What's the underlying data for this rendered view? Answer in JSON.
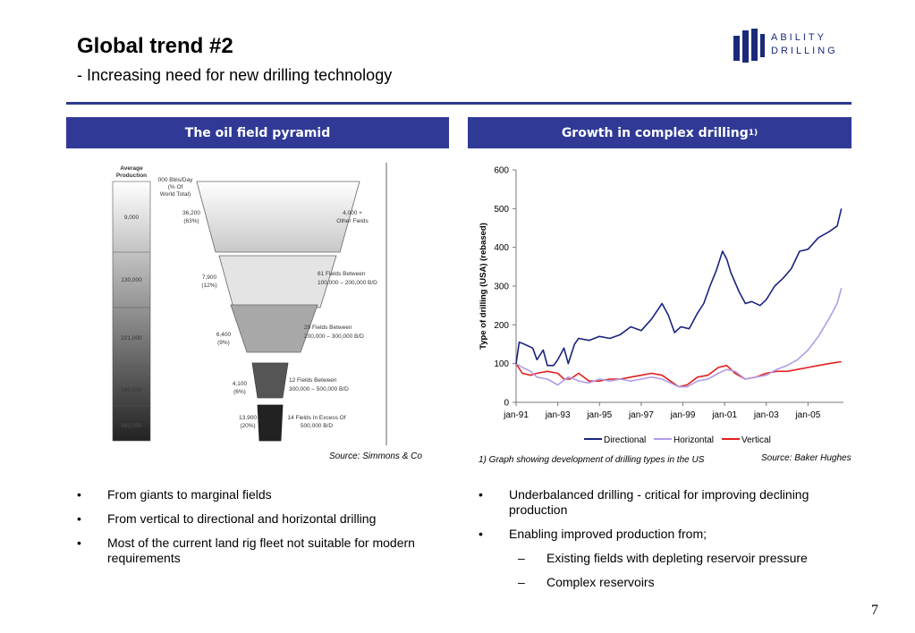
{
  "header": {
    "title": "Global trend #2",
    "subtitle": "- Increasing need for new drilling technology"
  },
  "logo": {
    "line1": "ABILITY",
    "line2": "DRILLING",
    "color": "#1a2a7a"
  },
  "left_panel": {
    "band_title": "The oil field pyramid",
    "source": "Source: Simmons & Co",
    "pyramid": {
      "column_header": [
        "Average",
        "Production"
      ],
      "pct_header": [
        "000 Bbls/Day",
        "(% Of",
        "World Total)"
      ],
      "rows": [
        {
          "avg": "9,000",
          "value": "36,200",
          "pct": "(63%)",
          "desc": [
            "4,000 +",
            "Other Fields"
          ]
        },
        {
          "avg": "130,000",
          "value": "7,900",
          "pct": "(12%)",
          "desc": [
            "61 Fields Between",
            "100,000 – 200,000 B/D"
          ]
        },
        {
          "avg": "221,000",
          "value": "6,400",
          "pct": "(9%)",
          "desc": [
            "29 Fields Between",
            "200,000 – 300,000 B/D"
          ]
        },
        {
          "avg": "342,000",
          "value": "4,100",
          "pct": "(6%)",
          "desc": [
            "12 Fields Between",
            "300,000 – 500,000 B/D"
          ]
        },
        {
          "avg": "993,000",
          "value": "13,900",
          "pct": "(20%)",
          "desc": [
            "14 Fields In Excess Of",
            "500,000 B/D"
          ]
        }
      ]
    },
    "bullets": [
      "From giants to marginal fields",
      "From vertical to directional and horizontal drilling",
      "Most of the current land rig fleet not suitable for modern requirements"
    ]
  },
  "right_panel": {
    "band_title": "Growth in complex drilling",
    "band_sup": "1)",
    "footnote": "1) Graph showing development of drilling types in the US",
    "source": "Source: Baker Hughes",
    "bullets": [
      {
        "text": "Underbalanced drilling - critical for improving declining production",
        "level": 1
      },
      {
        "text": "Enabling improved production from;",
        "level": 1
      },
      {
        "text": "Existing fields with depleting reservoir pressure",
        "level": 2
      },
      {
        "text": "Complex reservoirs",
        "level": 2
      }
    ]
  },
  "chart_data": {
    "type": "line",
    "ylabel": "Type of drilling (USA) (rebased)",
    "ylim": [
      0,
      600
    ],
    "yticks": [
      0,
      100,
      200,
      300,
      400,
      500,
      600
    ],
    "xlim": [
      1991,
      2006.7
    ],
    "xticks": [
      {
        "label": "jan-91",
        "x": 1991
      },
      {
        "label": "jan-93",
        "x": 1993
      },
      {
        "label": "jan-95",
        "x": 1995
      },
      {
        "label": "jan-97",
        "x": 1997
      },
      {
        "label": "jan-99",
        "x": 1999
      },
      {
        "label": "jan-01",
        "x": 2001
      },
      {
        "label": "jan-03",
        "x": 2003
      },
      {
        "label": "jan-05",
        "x": 2005
      }
    ],
    "legend_position": "bottom",
    "series": [
      {
        "name": "Directional",
        "color": "#1a237e",
        "points": [
          [
            1991,
            100
          ],
          [
            1991.15,
            155
          ],
          [
            1991.4,
            150
          ],
          [
            1991.8,
            140
          ],
          [
            1992,
            110
          ],
          [
            1992.3,
            135
          ],
          [
            1992.5,
            95
          ],
          [
            1992.8,
            95
          ],
          [
            1993,
            110
          ],
          [
            1993.3,
            140
          ],
          [
            1993.5,
            100
          ],
          [
            1993.8,
            150
          ],
          [
            1994,
            165
          ],
          [
            1994.5,
            160
          ],
          [
            1995,
            170
          ],
          [
            1995.5,
            165
          ],
          [
            1996,
            175
          ],
          [
            1996.5,
            195
          ],
          [
            1997,
            185
          ],
          [
            1997.5,
            215
          ],
          [
            1998,
            255
          ],
          [
            1998.3,
            225
          ],
          [
            1998.6,
            180
          ],
          [
            1998.9,
            195
          ],
          [
            1999.3,
            190
          ],
          [
            1999.7,
            230
          ],
          [
            2000,
            255
          ],
          [
            2000.3,
            300
          ],
          [
            2000.6,
            340
          ],
          [
            2000.9,
            390
          ],
          [
            2001.1,
            370
          ],
          [
            2001.3,
            335
          ],
          [
            2001.7,
            285
          ],
          [
            2002,
            255
          ],
          [
            2002.3,
            260
          ],
          [
            2002.7,
            250
          ],
          [
            2003,
            265
          ],
          [
            2003.4,
            300
          ],
          [
            2003.8,
            320
          ],
          [
            2004.2,
            345
          ],
          [
            2004.6,
            390
          ],
          [
            2005,
            395
          ],
          [
            2005.5,
            425
          ],
          [
            2006,
            440
          ],
          [
            2006.4,
            455
          ],
          [
            2006.6,
            500
          ]
        ]
      },
      {
        "name": "Horizontal",
        "color": "#b09ce8",
        "points": [
          [
            1991,
            100
          ],
          [
            1991.3,
            90
          ],
          [
            1991.7,
            80
          ],
          [
            1992,
            65
          ],
          [
            1992.5,
            60
          ],
          [
            1993,
            45
          ],
          [
            1993.5,
            65
          ],
          [
            1993.8,
            60
          ],
          [
            1994,
            55
          ],
          [
            1994.5,
            50
          ],
          [
            1995,
            60
          ],
          [
            1995.5,
            55
          ],
          [
            1996,
            60
          ],
          [
            1996.5,
            55
          ],
          [
            1997,
            60
          ],
          [
            1997.5,
            65
          ],
          [
            1998,
            60
          ],
          [
            1998.4,
            50
          ],
          [
            1998.8,
            40
          ],
          [
            1999.2,
            40
          ],
          [
            1999.7,
            55
          ],
          [
            2000.2,
            60
          ],
          [
            2000.7,
            75
          ],
          [
            2001.1,
            85
          ],
          [
            2001.5,
            80
          ],
          [
            2002,
            60
          ],
          [
            2002.5,
            65
          ],
          [
            2003,
            70
          ],
          [
            2003.5,
            85
          ],
          [
            2004,
            95
          ],
          [
            2004.5,
            110
          ],
          [
            2005,
            135
          ],
          [
            2005.5,
            170
          ],
          [
            2006,
            215
          ],
          [
            2006.4,
            255
          ],
          [
            2006.6,
            295
          ]
        ]
      },
      {
        "name": "Vertical",
        "color": "#e0201e",
        "points": [
          [
            1991,
            100
          ],
          [
            1991.3,
            75
          ],
          [
            1991.7,
            70
          ],
          [
            1992,
            75
          ],
          [
            1992.5,
            80
          ],
          [
            1993,
            75
          ],
          [
            1993.3,
            60
          ],
          [
            1993.6,
            60
          ],
          [
            1994,
            75
          ],
          [
            1994.5,
            55
          ],
          [
            1995,
            55
          ],
          [
            1995.5,
            60
          ],
          [
            1996,
            60
          ],
          [
            1996.5,
            65
          ],
          [
            1997,
            70
          ],
          [
            1997.5,
            75
          ],
          [
            1998,
            70
          ],
          [
            1998.4,
            55
          ],
          [
            1998.8,
            40
          ],
          [
            1999.2,
            45
          ],
          [
            1999.7,
            65
          ],
          [
            2000.2,
            70
          ],
          [
            2000.7,
            90
          ],
          [
            2001.1,
            95
          ],
          [
            2001.5,
            75
          ],
          [
            2002,
            60
          ],
          [
            2002.5,
            65
          ],
          [
            2003,
            75
          ],
          [
            2003.5,
            80
          ],
          [
            2004,
            80
          ],
          [
            2004.5,
            85
          ],
          [
            2005,
            90
          ],
          [
            2005.5,
            95
          ],
          [
            2006,
            100
          ],
          [
            2006.6,
            105
          ]
        ]
      }
    ]
  },
  "page_number": "7"
}
